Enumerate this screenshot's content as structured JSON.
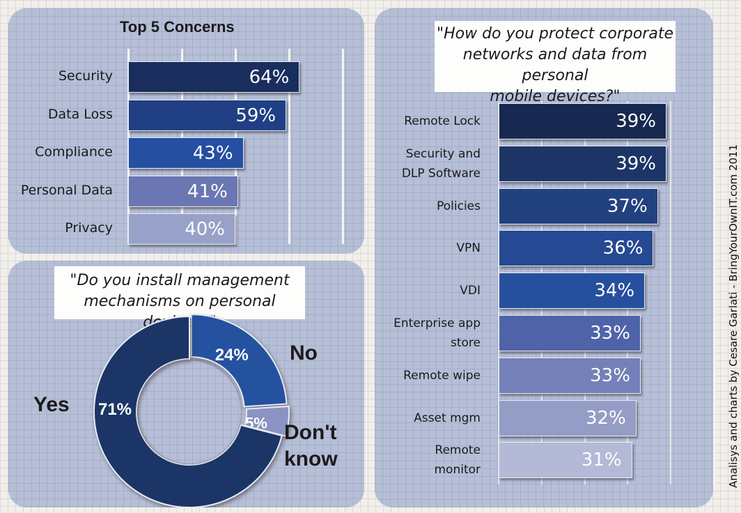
{
  "chart_data": [
    {
      "type": "bar",
      "orientation": "horizontal",
      "title": "Top 5 Concerns",
      "categories": [
        "Security",
        "Data Loss",
        "Compliance",
        "Personal Data",
        "Privacy"
      ],
      "values": [
        64,
        59,
        43,
        41,
        40
      ],
      "value_labels": [
        "64%",
        "59%",
        "43%",
        "41%",
        "40%"
      ],
      "colors": [
        "#1a2e5e",
        "#203f84",
        "#2550a2",
        "#6a77b2",
        "#98a1c8"
      ],
      "xlim": [
        0,
        100
      ],
      "grid": true,
      "xlabel": "",
      "ylabel": ""
    },
    {
      "type": "pie",
      "variant": "donut",
      "title": "\"Do you install management mechanisms on personal devices?\"",
      "title_lines": [
        "\"Do you install management",
        "mechanisms on personal devices?\""
      ],
      "slices": [
        {
          "label": "No",
          "value": 24,
          "value_label": "24%",
          "color": "#24529f"
        },
        {
          "label": "Don't know",
          "label_lines": [
            "Don't",
            "know"
          ],
          "value": 5,
          "value_label": "5%",
          "color": "#8a93c3"
        },
        {
          "label": "Yes",
          "value": 71,
          "value_label": "71%",
          "color": "#1b3566"
        }
      ]
    },
    {
      "type": "bar",
      "orientation": "horizontal",
      "title": "\"How do you protect corporate networks and data from personal mobile devices?\"",
      "title_lines": [
        "\"How do you protect corporate",
        "networks and data from personal",
        "mobile devices?\""
      ],
      "categories": [
        "Remote Lock",
        "Security and DLP Software",
        "Policies",
        "VPN",
        "VDI",
        "Enterprise app store",
        "Remote wipe",
        "Asset mgm",
        "Remote monitor"
      ],
      "category_lines": [
        [
          "Remote Lock"
        ],
        [
          "Security and",
          "DLP Software"
        ],
        [
          "Policies"
        ],
        [
          "VPN"
        ],
        [
          "VDI"
        ],
        [
          "Enterprise app",
          "store"
        ],
        [
          "Remote wipe"
        ],
        [
          "Asset mgm"
        ],
        [
          "Remote",
          "monitor"
        ]
      ],
      "values": [
        39,
        39,
        37,
        36,
        34,
        33,
        33,
        32,
        31
      ],
      "value_labels": [
        "39%",
        "39%",
        "37%",
        "36%",
        "34%",
        "33%",
        "33%",
        "32%",
        "31%"
      ],
      "colors": [
        "#172950",
        "#1d3566",
        "#22417f",
        "#254993",
        "#264f9e",
        "#4f64a8",
        "#7480b7",
        "#949dc6",
        "#b4b9d6"
      ],
      "xlim": [
        0,
        50
      ],
      "grid": true,
      "xlabel": "",
      "ylabel": ""
    }
  ],
  "credit": "Analisys and charts by Cesare Garlati - BringYourOwnIT.com 2011"
}
